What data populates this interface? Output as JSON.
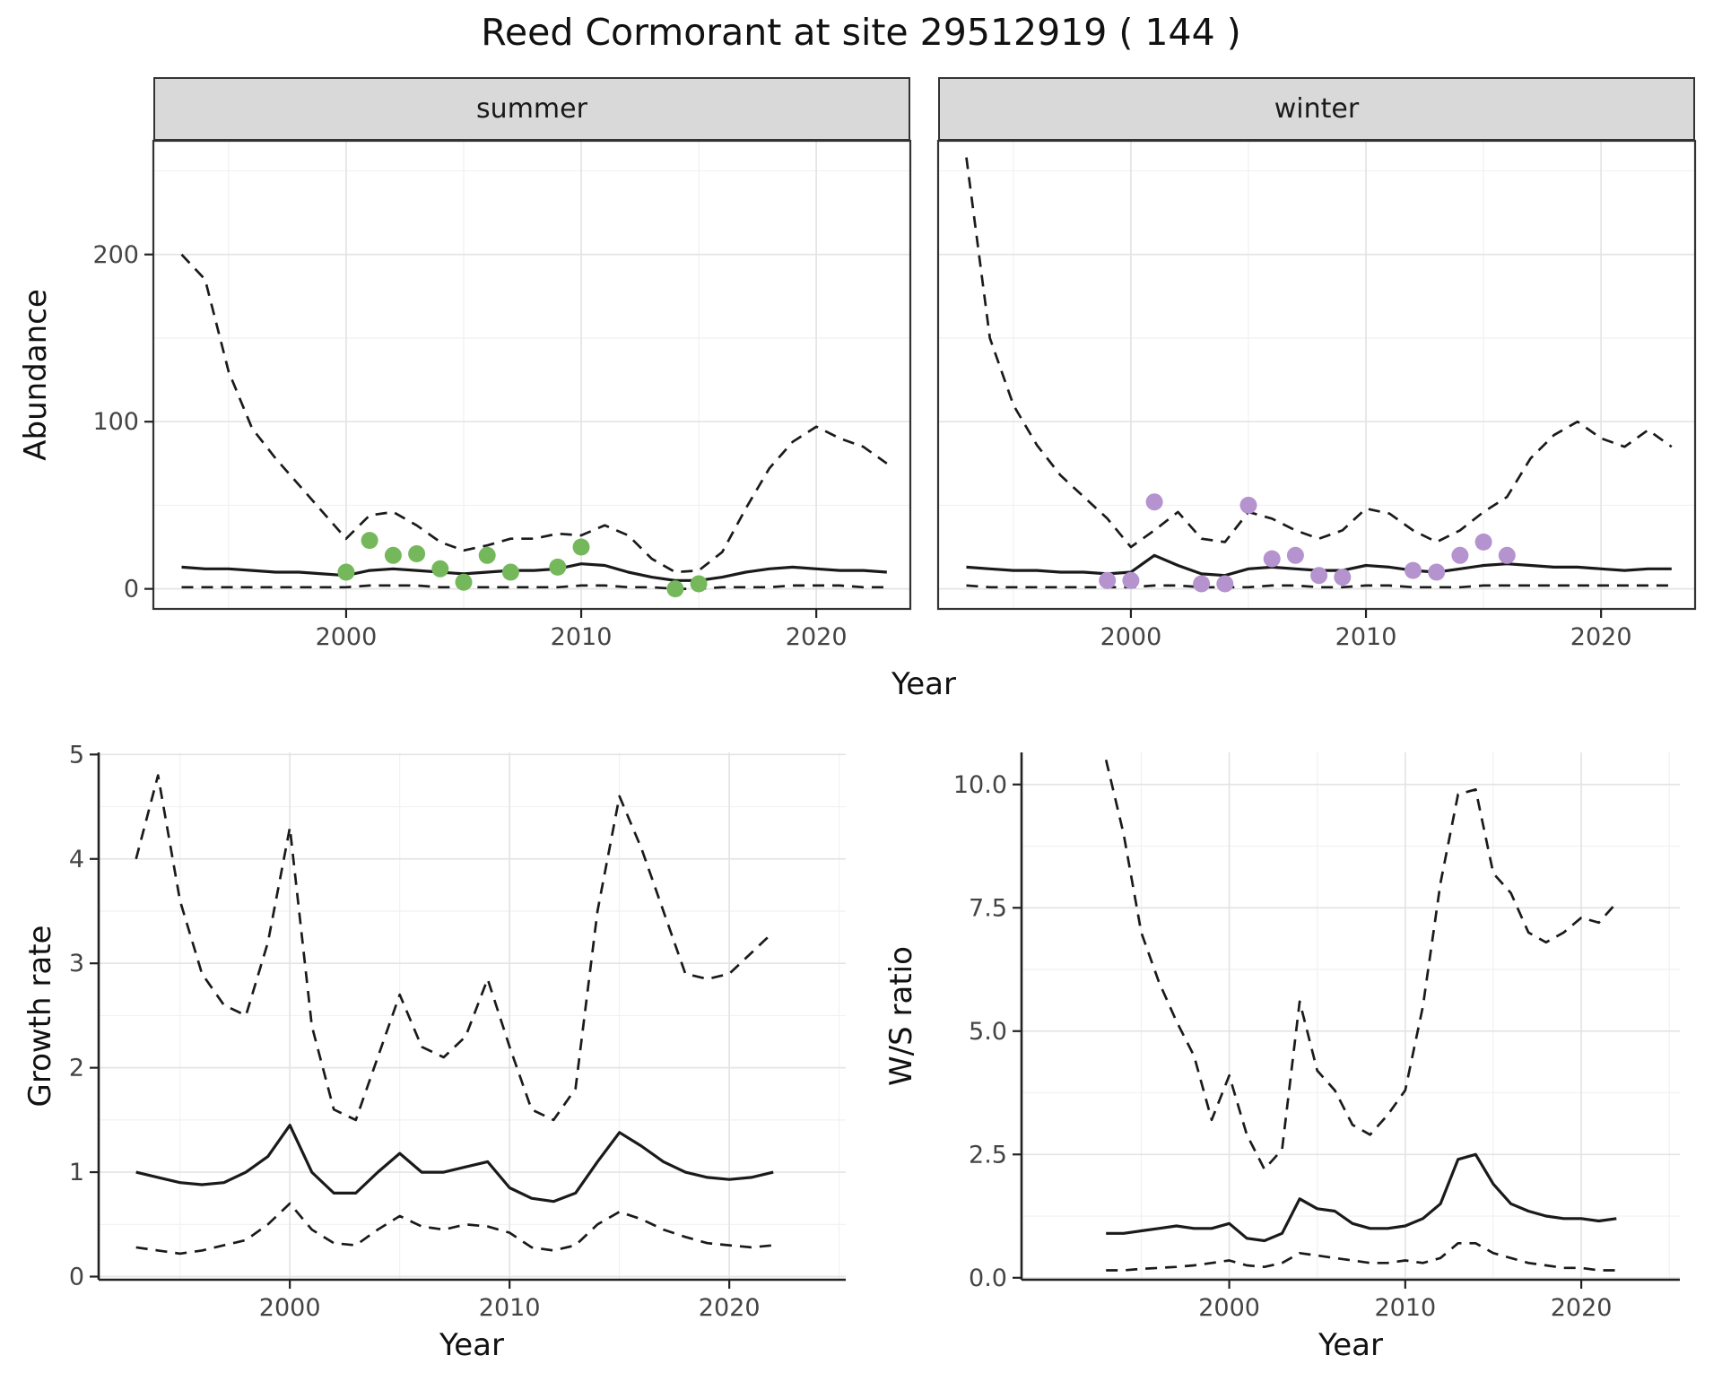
{
  "title": "Reed Cormorant at site 29512919 ( 144 )",
  "facets": [
    "summer",
    "winter"
  ],
  "shared_x_label": "Year",
  "colors": {
    "line": "#1a1a1a",
    "grid_major": "#e4e4e4",
    "grid_minor": "#f1f1f1",
    "frame": "#333333",
    "axis": "#222222",
    "tick_text": "#444444",
    "summer_points": "#75b85c",
    "winter_points": "#b493ce",
    "strip_bg": "#d9d9d9"
  },
  "chart_data": [
    {
      "id": "abundance-summer",
      "type": "line",
      "facet": "summer",
      "xlabel": "Year",
      "ylabel": "Abundance",
      "xlim": [
        1991.8,
        2024.0
      ],
      "ylim": [
        -12,
        268
      ],
      "xticks": [
        2000,
        2010,
        2020
      ],
      "xtick_labels": [
        "2000",
        "2010",
        "2020"
      ],
      "yticks": [
        0,
        100,
        200
      ],
      "ytick_labels": [
        "0",
        "100",
        "200"
      ],
      "x": [
        1993,
        1994,
        1995,
        1996,
        1997,
        1998,
        1999,
        2000,
        2001,
        2002,
        2003,
        2004,
        2005,
        2006,
        2007,
        2008,
        2009,
        2010,
        2011,
        2012,
        2013,
        2014,
        2015,
        2016,
        2017,
        2018,
        2019,
        2020,
        2021,
        2022,
        2023
      ],
      "series": [
        {
          "name": "upper_95ci",
          "style": "dashed",
          "values": [
            200,
            185,
            130,
            96,
            78,
            62,
            46,
            30,
            44,
            46,
            38,
            28,
            23,
            26,
            30,
            30,
            33,
            32,
            38,
            32,
            18,
            10,
            11,
            22,
            48,
            72,
            88,
            97,
            90,
            85,
            75
          ]
        },
        {
          "name": "estimate",
          "style": "solid",
          "values": [
            13,
            12,
            12,
            11,
            10,
            10,
            9,
            8,
            11,
            12,
            11,
            10,
            9,
            10,
            11,
            11,
            12,
            15,
            14,
            10,
            7,
            5,
            5,
            7,
            10,
            12,
            13,
            12,
            11,
            11,
            10
          ]
        },
        {
          "name": "lower_95ci",
          "style": "dashed",
          "values": [
            1,
            1,
            1,
            1,
            1,
            1,
            1,
            1,
            2,
            2,
            2,
            1,
            1,
            1,
            1,
            1,
            1,
            2,
            2,
            1,
            1,
            0,
            0,
            1,
            1,
            1,
            2,
            2,
            2,
            1,
            1
          ]
        }
      ],
      "points": {
        "name": "observed-counts-summer",
        "color": "#75b85c",
        "x": [
          2000,
          2001,
          2002,
          2003,
          2004,
          2005,
          2006,
          2007,
          2009,
          2010,
          2014,
          2015
        ],
        "y": [
          10,
          29,
          20,
          21,
          12,
          4,
          20,
          10,
          13,
          25,
          0,
          3
        ]
      }
    },
    {
      "id": "abundance-winter",
      "type": "line",
      "facet": "winter",
      "xlabel": "Year",
      "ylabel": "Abundance",
      "xlim": [
        1991.8,
        2024.0
      ],
      "ylim": [
        -12,
        268
      ],
      "xticks": [
        2000,
        2010,
        2020
      ],
      "xtick_labels": [
        "2000",
        "2010",
        "2020"
      ],
      "yticks": [
        0,
        100,
        200
      ],
      "ytick_labels": [
        "0",
        "100",
        "200"
      ],
      "x": [
        1993,
        1994,
        1995,
        1996,
        1997,
        1998,
        1999,
        2000,
        2001,
        2002,
        2003,
        2004,
        2005,
        2006,
        2007,
        2008,
        2009,
        2010,
        2011,
        2012,
        2013,
        2014,
        2015,
        2016,
        2017,
        2018,
        2019,
        2020,
        2021,
        2022,
        2023
      ],
      "series": [
        {
          "name": "upper_95ci",
          "style": "dashed",
          "values": [
            258,
            150,
            110,
            86,
            68,
            55,
            42,
            25,
            35,
            46,
            30,
            28,
            46,
            42,
            35,
            30,
            35,
            48,
            45,
            35,
            28,
            35,
            46,
            55,
            78,
            92,
            100,
            90,
            85,
            95,
            85
          ]
        },
        {
          "name": "estimate",
          "style": "solid",
          "values": [
            13,
            12,
            11,
            11,
            10,
            10,
            9,
            10,
            20,
            14,
            9,
            8,
            12,
            13,
            12,
            11,
            11,
            14,
            13,
            11,
            10,
            12,
            14,
            15,
            14,
            13,
            13,
            12,
            11,
            12,
            12
          ]
        },
        {
          "name": "lower_95ci",
          "style": "dashed",
          "values": [
            2,
            1,
            1,
            1,
            1,
            1,
            1,
            1,
            2,
            2,
            1,
            1,
            1,
            2,
            2,
            1,
            1,
            2,
            2,
            1,
            1,
            1,
            2,
            2,
            2,
            2,
            2,
            2,
            2,
            2,
            2
          ]
        }
      ],
      "points": {
        "name": "observed-counts-winter",
        "color": "#b493ce",
        "x": [
          1999,
          2000,
          2001,
          2003,
          2004,
          2005,
          2006,
          2007,
          2008,
          2009,
          2012,
          2013,
          2014,
          2015,
          2016
        ],
        "y": [
          5,
          5,
          52,
          3,
          3,
          50,
          18,
          20,
          8,
          7,
          11,
          10,
          20,
          28,
          20
        ]
      }
    },
    {
      "id": "growth-rate",
      "type": "line",
      "xlabel": "Year",
      "ylabel": "Growth rate",
      "xlim": [
        1991.3,
        2025.3
      ],
      "ylim": [
        -0.03,
        5.02
      ],
      "xticks": [
        2000,
        2010,
        2020
      ],
      "xtick_labels": [
        "2000",
        "2010",
        "2020"
      ],
      "yticks": [
        0,
        1,
        2,
        3,
        4,
        5
      ],
      "ytick_labels": [
        "0",
        "1",
        "2",
        "3",
        "4",
        "5"
      ],
      "x": [
        1993,
        1994,
        1995,
        1996,
        1997,
        1998,
        1999,
        2000,
        2001,
        2002,
        2003,
        2004,
        2005,
        2006,
        2007,
        2008,
        2009,
        2010,
        2011,
        2012,
        2013,
        2014,
        2015,
        2016,
        2017,
        2018,
        2019,
        2020,
        2021,
        2022
      ],
      "series": [
        {
          "name": "upper_95ci",
          "style": "dashed",
          "values": [
            4.0,
            4.8,
            3.6,
            2.9,
            2.6,
            2.5,
            3.2,
            4.3,
            2.4,
            1.6,
            1.5,
            2.1,
            2.7,
            2.2,
            2.1,
            2.3,
            2.85,
            2.2,
            1.6,
            1.5,
            1.8,
            3.5,
            4.6,
            4.1,
            3.5,
            2.9,
            2.85,
            2.9,
            3.1,
            3.3
          ]
        },
        {
          "name": "estimate",
          "style": "solid",
          "values": [
            1.0,
            0.95,
            0.9,
            0.88,
            0.9,
            1.0,
            1.15,
            1.45,
            1.0,
            0.8,
            0.8,
            1.0,
            1.18,
            1.0,
            1.0,
            1.05,
            1.1,
            0.85,
            0.75,
            0.72,
            0.8,
            1.1,
            1.38,
            1.25,
            1.1,
            1.0,
            0.95,
            0.93,
            0.95,
            1.0
          ]
        },
        {
          "name": "lower_95ci",
          "style": "dashed",
          "values": [
            0.28,
            0.25,
            0.22,
            0.25,
            0.3,
            0.35,
            0.5,
            0.7,
            0.45,
            0.32,
            0.3,
            0.45,
            0.58,
            0.48,
            0.45,
            0.5,
            0.48,
            0.42,
            0.28,
            0.25,
            0.3,
            0.5,
            0.62,
            0.55,
            0.45,
            0.38,
            0.32,
            0.3,
            0.28,
            0.3
          ]
        }
      ]
    },
    {
      "id": "ws-ratio",
      "type": "line",
      "xlabel": "Year",
      "ylabel": "W/S ratio",
      "xlim": [
        1988.2,
        2025.6
      ],
      "ylim": [
        -0.04,
        10.65
      ],
      "xticks": [
        2000,
        2010,
        2020
      ],
      "xtick_labels": [
        "2000",
        "2010",
        "2020"
      ],
      "yticks": [
        0,
        2.5,
        5,
        7.5,
        10
      ],
      "ytick_labels": [
        "0.0",
        "2.5",
        "5.0",
        "7.5",
        "10.0"
      ],
      "x": [
        1993,
        1994,
        1995,
        1996,
        1997,
        1998,
        1999,
        2000,
        2001,
        2002,
        2003,
        2004,
        2005,
        2006,
        2007,
        2008,
        2009,
        2010,
        2011,
        2012,
        2013,
        2014,
        2015,
        2016,
        2017,
        2018,
        2019,
        2020,
        2021,
        2022
      ],
      "series": [
        {
          "name": "upper_95ci",
          "style": "dashed",
          "values": [
            10.5,
            9.0,
            7.0,
            6.0,
            5.2,
            4.5,
            3.2,
            4.1,
            2.9,
            2.2,
            2.6,
            5.6,
            4.2,
            3.8,
            3.1,
            2.9,
            3.3,
            3.8,
            5.5,
            8.0,
            9.8,
            9.9,
            8.2,
            7.8,
            7.0,
            6.8,
            7.0,
            7.3,
            7.2,
            7.6
          ]
        },
        {
          "name": "estimate",
          "style": "solid",
          "values": [
            0.9,
            0.9,
            0.95,
            1.0,
            1.05,
            1.0,
            1.0,
            1.1,
            0.8,
            0.75,
            0.9,
            1.6,
            1.4,
            1.35,
            1.1,
            1.0,
            1.0,
            1.05,
            1.2,
            1.5,
            2.4,
            2.5,
            1.9,
            1.5,
            1.35,
            1.25,
            1.2,
            1.2,
            1.15,
            1.2
          ]
        },
        {
          "name": "lower_95ci",
          "style": "dashed",
          "values": [
            0.15,
            0.15,
            0.18,
            0.2,
            0.22,
            0.25,
            0.3,
            0.35,
            0.25,
            0.22,
            0.3,
            0.5,
            0.45,
            0.4,
            0.35,
            0.3,
            0.3,
            0.35,
            0.3,
            0.4,
            0.7,
            0.7,
            0.5,
            0.4,
            0.3,
            0.25,
            0.2,
            0.2,
            0.15,
            0.15
          ]
        }
      ]
    }
  ]
}
